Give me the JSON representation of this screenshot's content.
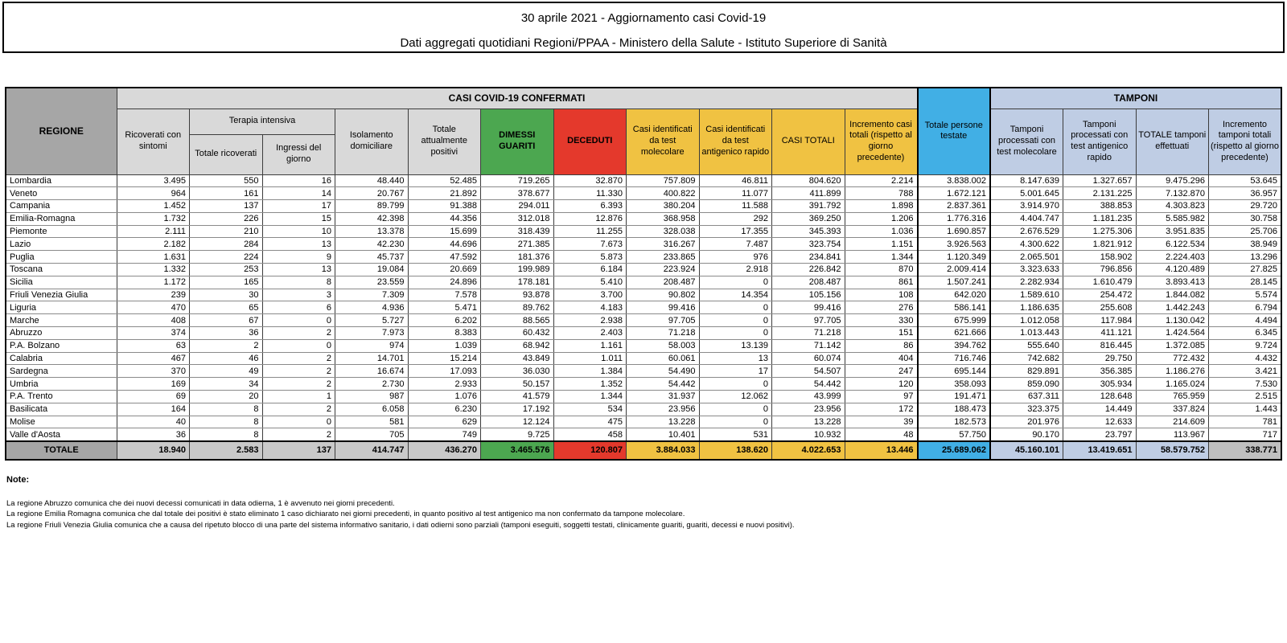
{
  "title": {
    "line1": "30 aprile 2021 - Aggiornamento casi Covid-19",
    "line2": "Dati aggregati quotidiani Regioni/PPAA - Ministero della Salute - Istituto Superiore di Sanità"
  },
  "table": {
    "headers": {
      "regione": "REGIONE",
      "casi_confermati": "CASI COVID-19 CONFERMATI",
      "tamponi": "TAMPONI",
      "ricoverati": "Ricoverati con sintomi",
      "terapia_intensiva": "Terapia intensiva",
      "totale_ricoverati": "Totale ricoverati",
      "ingressi_giorno": "Ingressi del giorno",
      "isolamento": "Isolamento domiciliare",
      "attualmente_positivi": "Totale attualmente positivi",
      "dimessi_guariti": "DIMESSI GUARITI",
      "deceduti": "DECEDUTI",
      "casi_molecolare": "Casi identificati da test molecolare",
      "casi_antigenico": "Casi identificati da test antigenico rapido",
      "casi_totali": "CASI TOTALI",
      "incremento_casi": "Incremento casi totali (rispetto al giorno precedente)",
      "persone_testate": "Totale persone testate",
      "tamponi_molecolare": "Tamponi processati con test molecolare",
      "tamponi_antigenico": "Tamponi processati con test antigenico rapido",
      "totale_tamponi": "TOTALE tamponi effettuati",
      "incremento_tamponi": "Incremento tamponi totali (rispetto al giorno precedente)"
    },
    "rows": [
      {
        "region": "Lombardia",
        "values": [
          "3.495",
          "550",
          "16",
          "48.440",
          "52.485",
          "719.265",
          "32.870",
          "757.809",
          "46.811",
          "804.620",
          "2.214",
          "3.838.002",
          "8.147.639",
          "1.327.657",
          "9.475.296",
          "53.645"
        ]
      },
      {
        "region": "Veneto",
        "values": [
          "964",
          "161",
          "14",
          "20.767",
          "21.892",
          "378.677",
          "11.330",
          "400.822",
          "11.077",
          "411.899",
          "788",
          "1.672.121",
          "5.001.645",
          "2.131.225",
          "7.132.870",
          "36.957"
        ]
      },
      {
        "region": "Campania",
        "values": [
          "1.452",
          "137",
          "17",
          "89.799",
          "91.388",
          "294.011",
          "6.393",
          "380.204",
          "11.588",
          "391.792",
          "1.898",
          "2.837.361",
          "3.914.970",
          "388.853",
          "4.303.823",
          "29.720"
        ]
      },
      {
        "region": "Emilia-Romagna",
        "values": [
          "1.732",
          "226",
          "15",
          "42.398",
          "44.356",
          "312.018",
          "12.876",
          "368.958",
          "292",
          "369.250",
          "1.206",
          "1.776.316",
          "4.404.747",
          "1.181.235",
          "5.585.982",
          "30.758"
        ]
      },
      {
        "region": "Piemonte",
        "values": [
          "2.111",
          "210",
          "10",
          "13.378",
          "15.699",
          "318.439",
          "11.255",
          "328.038",
          "17.355",
          "345.393",
          "1.036",
          "1.690.857",
          "2.676.529",
          "1.275.306",
          "3.951.835",
          "25.706"
        ]
      },
      {
        "region": "Lazio",
        "values": [
          "2.182",
          "284",
          "13",
          "42.230",
          "44.696",
          "271.385",
          "7.673",
          "316.267",
          "7.487",
          "323.754",
          "1.151",
          "3.926.563",
          "4.300.622",
          "1.821.912",
          "6.122.534",
          "38.949"
        ]
      },
      {
        "region": "Puglia",
        "values": [
          "1.631",
          "224",
          "9",
          "45.737",
          "47.592",
          "181.376",
          "5.873",
          "233.865",
          "976",
          "234.841",
          "1.344",
          "1.120.349",
          "2.065.501",
          "158.902",
          "2.224.403",
          "13.296"
        ]
      },
      {
        "region": "Toscana",
        "values": [
          "1.332",
          "253",
          "13",
          "19.084",
          "20.669",
          "199.989",
          "6.184",
          "223.924",
          "2.918",
          "226.842",
          "870",
          "2.009.414",
          "3.323.633",
          "796.856",
          "4.120.489",
          "27.825"
        ]
      },
      {
        "region": "Sicilia",
        "values": [
          "1.172",
          "165",
          "8",
          "23.559",
          "24.896",
          "178.181",
          "5.410",
          "208.487",
          "0",
          "208.487",
          "861",
          "1.507.241",
          "2.282.934",
          "1.610.479",
          "3.893.413",
          "28.145"
        ]
      },
      {
        "region": "Friuli Venezia Giulia",
        "values": [
          "239",
          "30",
          "3",
          "7.309",
          "7.578",
          "93.878",
          "3.700",
          "90.802",
          "14.354",
          "105.156",
          "108",
          "642.020",
          "1.589.610",
          "254.472",
          "1.844.082",
          "5.574"
        ]
      },
      {
        "region": "Liguria",
        "values": [
          "470",
          "65",
          "6",
          "4.936",
          "5.471",
          "89.762",
          "4.183",
          "99.416",
          "0",
          "99.416",
          "276",
          "586.141",
          "1.186.635",
          "255.608",
          "1.442.243",
          "6.794"
        ]
      },
      {
        "region": "Marche",
        "values": [
          "408",
          "67",
          "0",
          "5.727",
          "6.202",
          "88.565",
          "2.938",
          "97.705",
          "0",
          "97.705",
          "330",
          "675.999",
          "1.012.058",
          "117.984",
          "1.130.042",
          "4.494"
        ]
      },
      {
        "region": "Abruzzo",
        "values": [
          "374",
          "36",
          "2",
          "7.973",
          "8.383",
          "60.432",
          "2.403",
          "71.218",
          "0",
          "71.218",
          "151",
          "621.666",
          "1.013.443",
          "411.121",
          "1.424.564",
          "6.345"
        ]
      },
      {
        "region": "P.A. Bolzano",
        "values": [
          "63",
          "2",
          "0",
          "974",
          "1.039",
          "68.942",
          "1.161",
          "58.003",
          "13.139",
          "71.142",
          "86",
          "394.762",
          "555.640",
          "816.445",
          "1.372.085",
          "9.724"
        ]
      },
      {
        "region": "Calabria",
        "values": [
          "467",
          "46",
          "2",
          "14.701",
          "15.214",
          "43.849",
          "1.011",
          "60.061",
          "13",
          "60.074",
          "404",
          "716.746",
          "742.682",
          "29.750",
          "772.432",
          "4.432"
        ]
      },
      {
        "region": "Sardegna",
        "values": [
          "370",
          "49",
          "2",
          "16.674",
          "17.093",
          "36.030",
          "1.384",
          "54.490",
          "17",
          "54.507",
          "247",
          "695.144",
          "829.891",
          "356.385",
          "1.186.276",
          "3.421"
        ]
      },
      {
        "region": "Umbria",
        "values": [
          "169",
          "34",
          "2",
          "2.730",
          "2.933",
          "50.157",
          "1.352",
          "54.442",
          "0",
          "54.442",
          "120",
          "358.093",
          "859.090",
          "305.934",
          "1.165.024",
          "7.530"
        ]
      },
      {
        "region": "P.A. Trento",
        "values": [
          "69",
          "20",
          "1",
          "987",
          "1.076",
          "41.579",
          "1.344",
          "31.937",
          "12.062",
          "43.999",
          "97",
          "191.471",
          "637.311",
          "128.648",
          "765.959",
          "2.515"
        ]
      },
      {
        "region": "Basilicata",
        "values": [
          "164",
          "8",
          "2",
          "6.058",
          "6.230",
          "17.192",
          "534",
          "23.956",
          "0",
          "23.956",
          "172",
          "188.473",
          "323.375",
          "14.449",
          "337.824",
          "1.443"
        ]
      },
      {
        "region": "Molise",
        "values": [
          "40",
          "8",
          "0",
          "581",
          "629",
          "12.124",
          "475",
          "13.228",
          "0",
          "13.228",
          "39",
          "182.573",
          "201.976",
          "12.633",
          "214.609",
          "781"
        ]
      },
      {
        "region": "Valle d'Aosta",
        "values": [
          "36",
          "8",
          "2",
          "705",
          "749",
          "9.725",
          "458",
          "10.401",
          "531",
          "10.932",
          "48",
          "57.750",
          "90.170",
          "23.797",
          "113.967",
          "717"
        ]
      }
    ],
    "total_row": {
      "region": "TOTALE",
      "values": [
        "18.940",
        "2.583",
        "137",
        "414.747",
        "436.270",
        "3.465.576",
        "120.807",
        "3.884.033",
        "138.620",
        "4.022.653",
        "13.446",
        "25.689.062",
        "45.160.101",
        "13.419.651",
        "58.579.752",
        "338.771"
      ]
    }
  },
  "notes": {
    "heading": "Note:",
    "lines": [
      "La regione Abruzzo comunica che dei nuovi decessi comunicati in data odierna, 1 è avvenuto nei giorni precedenti.",
      "La regione Emilia Romagna comunica che dal totale dei positivi è stato eliminato 1 caso dichiarato nei giorni precedenti, in quanto positivo al test antigenico ma non confermato da tampone molecolare.",
      "La regione Friuli Venezia Giulia comunica che a causa del ripetuto blocco di una parte del sistema informativo sanitario, i dati odierni sono parziali (tamponi eseguiti, soggetti testati, clinicamente guariti, guariti, decessi e nuovi positivi)."
    ]
  },
  "colors": {
    "green": "#4ca750",
    "red": "#e4392c",
    "gold": "#f0c242",
    "blue": "#41afe5",
    "peri": "#bfcde4",
    "grey-dark": "#a6a6a6",
    "grey-light": "#d9d9d9",
    "grey-tot": "#c9c9c9",
    "grey-last": "#bfbfbf"
  }
}
